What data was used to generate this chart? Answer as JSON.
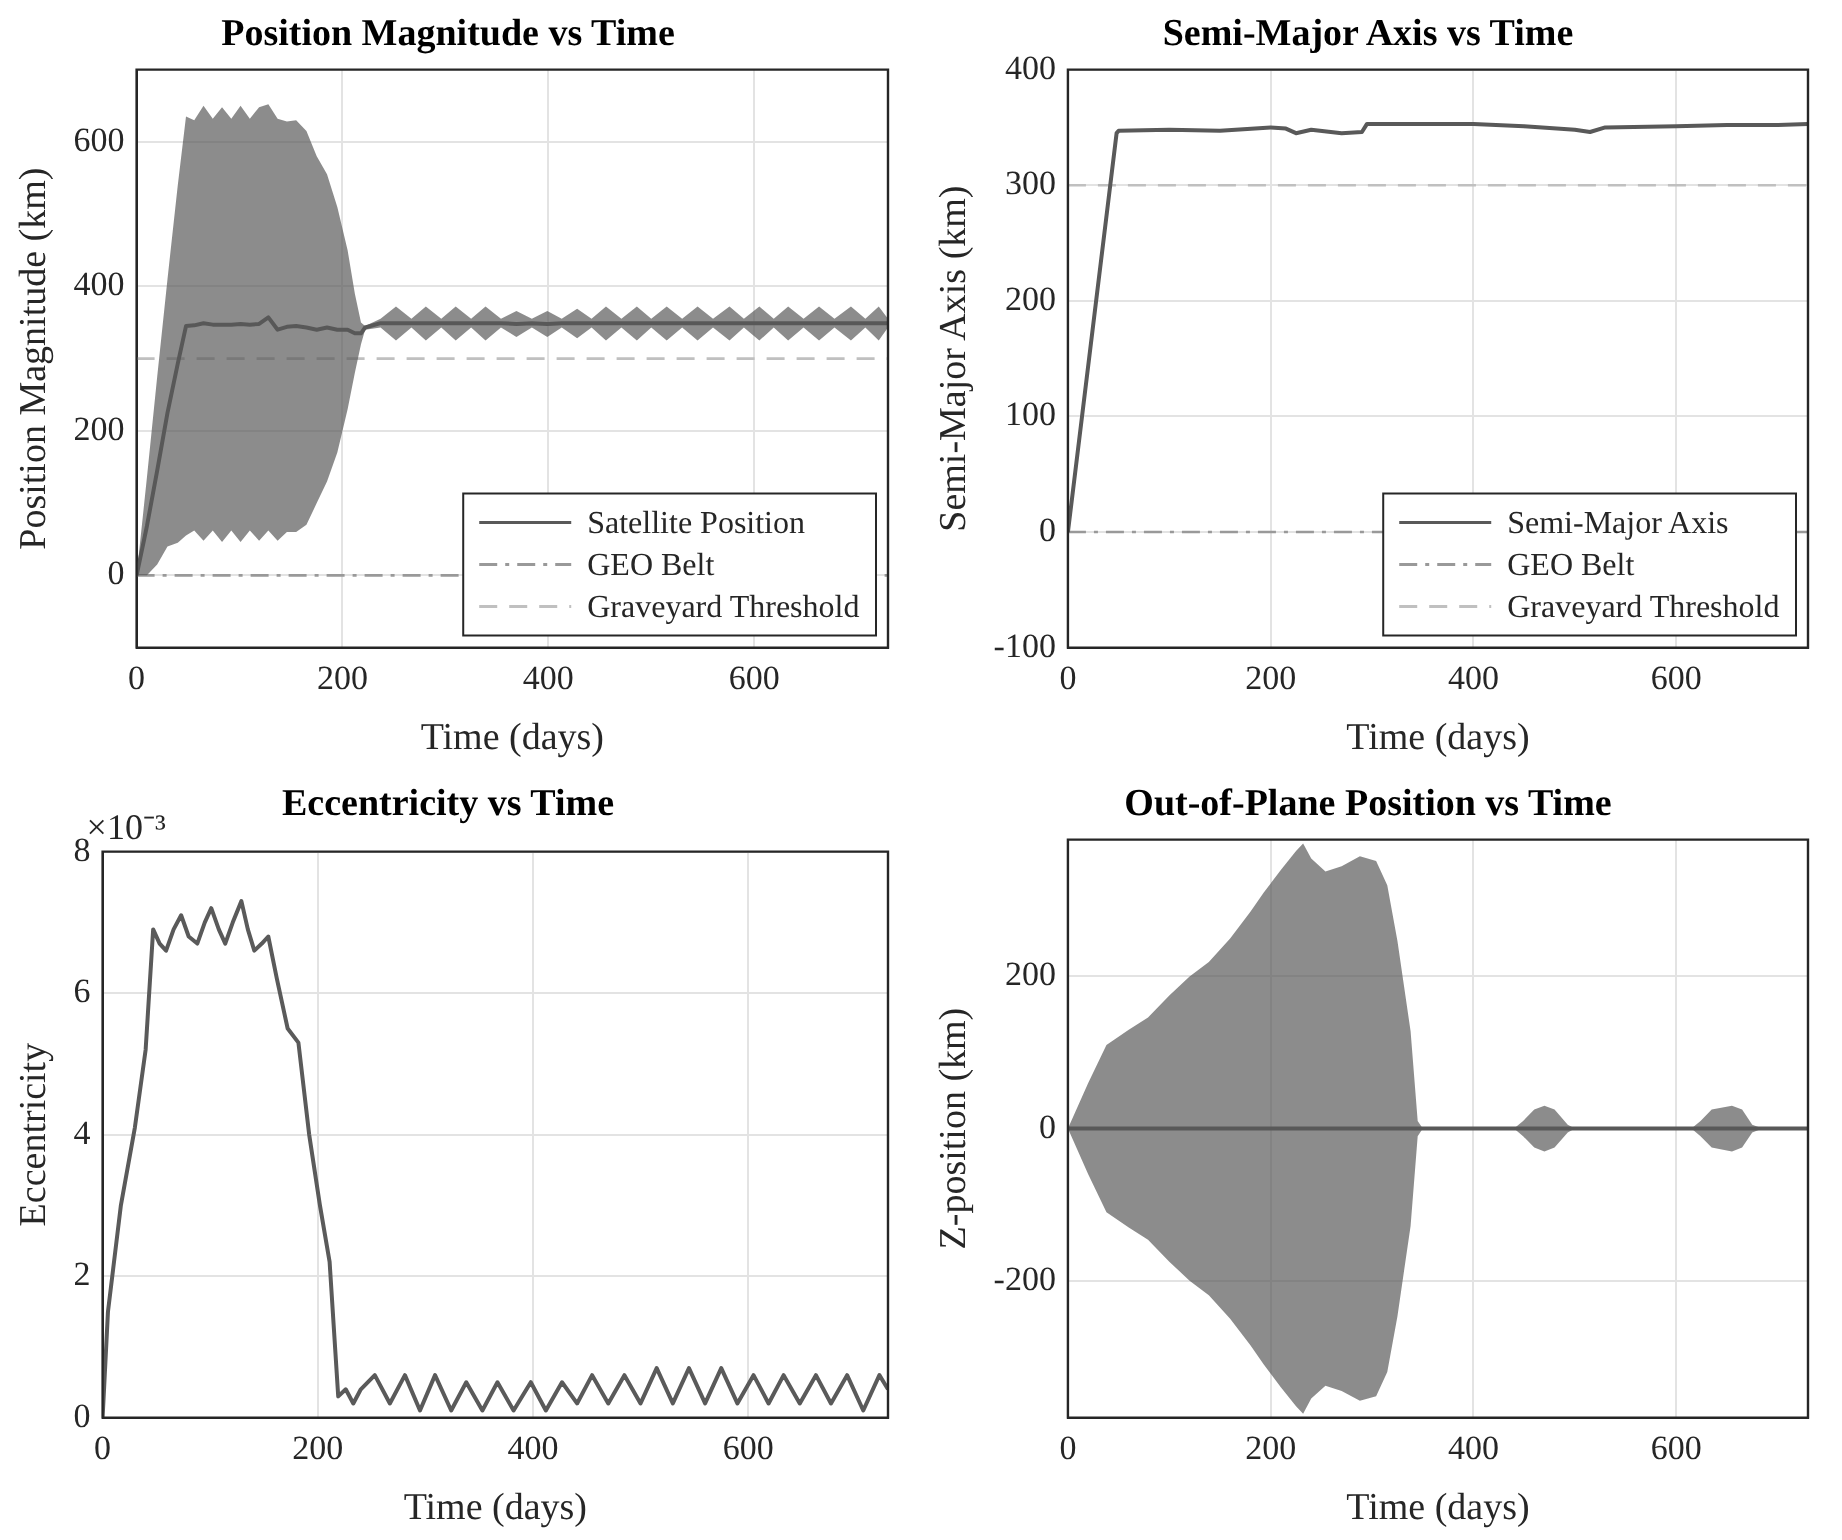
{
  "chart_data": [
    {
      "type": "line",
      "title": "Position Magnitude vs Time",
      "xlabel": "Time (days)",
      "ylabel": "Position Magnitude (km)",
      "xlim": [
        0,
        730
      ],
      "xticks": [
        0,
        200,
        400,
        600
      ],
      "ylim": [
        -100,
        700
      ],
      "yticks": [
        0,
        200,
        400,
        600
      ],
      "grid": true,
      "legend": "bottom right",
      "series": [
        {
          "name": "Satellite Position",
          "color": "#595959",
          "x": [
            0,
            10,
            20,
            30,
            40,
            48,
            56,
            65,
            74,
            83,
            92,
            101,
            110,
            119,
            128,
            137,
            146,
            155,
            165,
            175,
            185,
            195,
            205,
            212,
            218,
            222,
            237,
            252,
            267,
            281,
            296,
            310,
            325,
            339,
            354,
            369,
            384,
            399,
            413,
            428,
            442,
            456,
            471,
            486,
            500,
            515,
            530,
            545,
            560,
            576,
            590,
            605,
            619,
            633,
            648,
            663,
            678,
            694,
            708,
            721,
            730
          ],
          "values": [
            0,
            68,
            145,
            225,
            293,
            345,
            346,
            349,
            347,
            347,
            347,
            348,
            347,
            348,
            357,
            340,
            344,
            345,
            343,
            340,
            343,
            340,
            340,
            335,
            335,
            343,
            349,
            349,
            349,
            349,
            349,
            349,
            349,
            349,
            349,
            348,
            349,
            348,
            349,
            349,
            349,
            349,
            349,
            349,
            349,
            349,
            349,
            349,
            349,
            349,
            349,
            349,
            349,
            349,
            349,
            349,
            349,
            349,
            349,
            349,
            349
          ],
          "lower": [
            0,
            0,
            15,
            40,
            45,
            55,
            62,
            48,
            62,
            46,
            62,
            46,
            62,
            48,
            62,
            48,
            60,
            60,
            70,
            100,
            130,
            170,
            230,
            280,
            320,
            340,
            343,
            325,
            343,
            325,
            343,
            325,
            343,
            325,
            343,
            330,
            343,
            330,
            343,
            328,
            343,
            325,
            343,
            325,
            343,
            325,
            343,
            325,
            343,
            325,
            343,
            325,
            343,
            325,
            343,
            325,
            343,
            325,
            343,
            325,
            343
          ],
          "upper": [
            0,
            135,
            275,
            410,
            540,
            635,
            630,
            650,
            632,
            648,
            632,
            650,
            632,
            648,
            652,
            632,
            628,
            630,
            615,
            580,
            555,
            510,
            450,
            390,
            350,
            345,
            355,
            372,
            355,
            372,
            355,
            372,
            355,
            372,
            355,
            366,
            355,
            366,
            355,
            369,
            355,
            372,
            355,
            372,
            355,
            372,
            355,
            372,
            355,
            372,
            355,
            372,
            355,
            372,
            355,
            372,
            355,
            372,
            355,
            372,
            355
          ]
        }
      ],
      "ref_lines": [
        {
          "axis": "y",
          "value": 0,
          "label": "GEO Belt",
          "color": "#999999",
          "line_style": "dashdot"
        },
        {
          "axis": "y",
          "value": 300,
          "label": "Graveyard Threshold",
          "color": "#c0c0c0",
          "line_style": "dashed"
        }
      ]
    },
    {
      "type": "line",
      "title": "Semi-Major Axis vs Time",
      "xlabel": "Time (days)",
      "ylabel": "Semi-Major Axis (km)",
      "xlim": [
        0,
        730
      ],
      "xticks": [
        0,
        200,
        400,
        600
      ],
      "ylim": [
        -100,
        400
      ],
      "yticks": [
        -100,
        0,
        100,
        200,
        300,
        400
      ],
      "grid": true,
      "legend": "bottom right",
      "series": [
        {
          "name": "Semi-Major Axis",
          "color": "#595959",
          "x": [
            0,
            48,
            50,
            100,
            150,
            200,
            215,
            225,
            240,
            270,
            290,
            295,
            350,
            400,
            450,
            500,
            515,
            530,
            600,
            650,
            700,
            730
          ],
          "values": [
            0,
            345,
            347,
            348,
            347,
            350,
            349,
            345,
            348,
            345,
            346,
            353,
            353,
            353,
            351,
            348,
            346,
            350,
            351,
            352,
            352,
            353
          ]
        }
      ],
      "ref_lines": [
        {
          "axis": "y",
          "value": 0,
          "label": "GEO Belt",
          "color": "#999999",
          "line_style": "dashdot"
        },
        {
          "axis": "y",
          "value": 300,
          "label": "Graveyard Threshold",
          "color": "#c0c0c0",
          "line_style": "dashed"
        }
      ]
    },
    {
      "type": "line",
      "title": "Eccentricity vs Time",
      "xlabel": "Time (days)",
      "ylabel": "Eccentricity",
      "xlim": [
        0,
        730
      ],
      "xticks": [
        0,
        200,
        400,
        600
      ],
      "ylim": [
        0,
        8
      ],
      "yticks": [
        0,
        2,
        4,
        6,
        8
      ],
      "grid": true,
      "annotations": [
        "×10⁻³"
      ],
      "series": [
        {
          "color": "#5a5a5a",
          "x": [
            0,
            5,
            17,
            30,
            40,
            47,
            53,
            59,
            66,
            73,
            80,
            88,
            95,
            101,
            108,
            114,
            121,
            129,
            135,
            141,
            148,
            154,
            162,
            172,
            182,
            192,
            202,
            211,
            219,
            226,
            233,
            240,
            253,
            267,
            281,
            295,
            309,
            324,
            338,
            353,
            367,
            382,
            398,
            412,
            427,
            441,
            455,
            470,
            485,
            500,
            515,
            530,
            545,
            560,
            575,
            590,
            605,
            619,
            633,
            648,
            663,
            677,
            692,
            707,
            722,
            730
          ],
          "values": [
            0,
            1.5,
            3.0,
            4.1,
            5.2,
            6.9,
            6.7,
            6.6,
            6.9,
            7.1,
            6.8,
            6.7,
            7.0,
            7.2,
            6.9,
            6.7,
            7.0,
            7.3,
            6.9,
            6.6,
            6.7,
            6.8,
            6.2,
            5.5,
            5.3,
            4.0,
            3.0,
            2.2,
            0.3,
            0.4,
            0.2,
            0.4,
            0.6,
            0.2,
            0.6,
            0.1,
            0.6,
            0.1,
            0.5,
            0.1,
            0.5,
            0.1,
            0.5,
            0.1,
            0.5,
            0.2,
            0.6,
            0.2,
            0.6,
            0.2,
            0.7,
            0.2,
            0.7,
            0.2,
            0.7,
            0.2,
            0.6,
            0.2,
            0.6,
            0.2,
            0.6,
            0.2,
            0.6,
            0.1,
            0.6,
            0.4
          ]
        }
      ]
    },
    {
      "type": "line",
      "title": "Out-of-Plane Position vs Time",
      "xlabel": "Time (days)",
      "ylabel": "Z-position (km)",
      "xlim": [
        0,
        730
      ],
      "xticks": [
        0,
        200,
        400,
        600
      ],
      "ylim": [
        -380,
        380
      ],
      "yticks": [
        -200,
        0,
        200
      ],
      "grid": true,
      "series": [
        {
          "color": "#595959",
          "x": [
            0,
            20,
            38,
            60,
            79,
            100,
            120,
            139,
            160,
            180,
            193,
            210,
            225,
            232,
            240,
            254,
            270,
            288,
            304,
            315,
            325,
            338,
            345,
            350,
            360,
            440,
            449,
            460,
            470,
            480,
            493,
            500,
            615,
            624,
            635,
            655,
            665,
            675,
            685,
            730
          ],
          "values": [
            0,
            0,
            0,
            0,
            0,
            0,
            0,
            0,
            0,
            0,
            0,
            0,
            0,
            0,
            0,
            0,
            0,
            0,
            0,
            0,
            0,
            0,
            0,
            0,
            0,
            0,
            0,
            0,
            0,
            0,
            0,
            0,
            0,
            0,
            0,
            0,
            0,
            0,
            0,
            0
          ],
          "lower": [
            0,
            -60,
            -110,
            -130,
            -146,
            -175,
            -200,
            -219,
            -250,
            -285,
            -310,
            -340,
            -365,
            -375,
            -355,
            -338,
            -345,
            -358,
            -352,
            -320,
            -247,
            -128,
            -10,
            0,
            0,
            0,
            -10,
            -25,
            -30,
            -25,
            -5,
            0,
            0,
            -10,
            -25,
            -30,
            -25,
            -5,
            0,
            0
          ],
          "upper": [
            0,
            60,
            110,
            130,
            146,
            175,
            200,
            219,
            250,
            285,
            310,
            340,
            365,
            375,
            355,
            338,
            345,
            358,
            352,
            320,
            247,
            128,
            10,
            0,
            0,
            0,
            10,
            25,
            30,
            25,
            5,
            0,
            0,
            10,
            25,
            30,
            25,
            5,
            0,
            0
          ]
        }
      ]
    }
  ]
}
